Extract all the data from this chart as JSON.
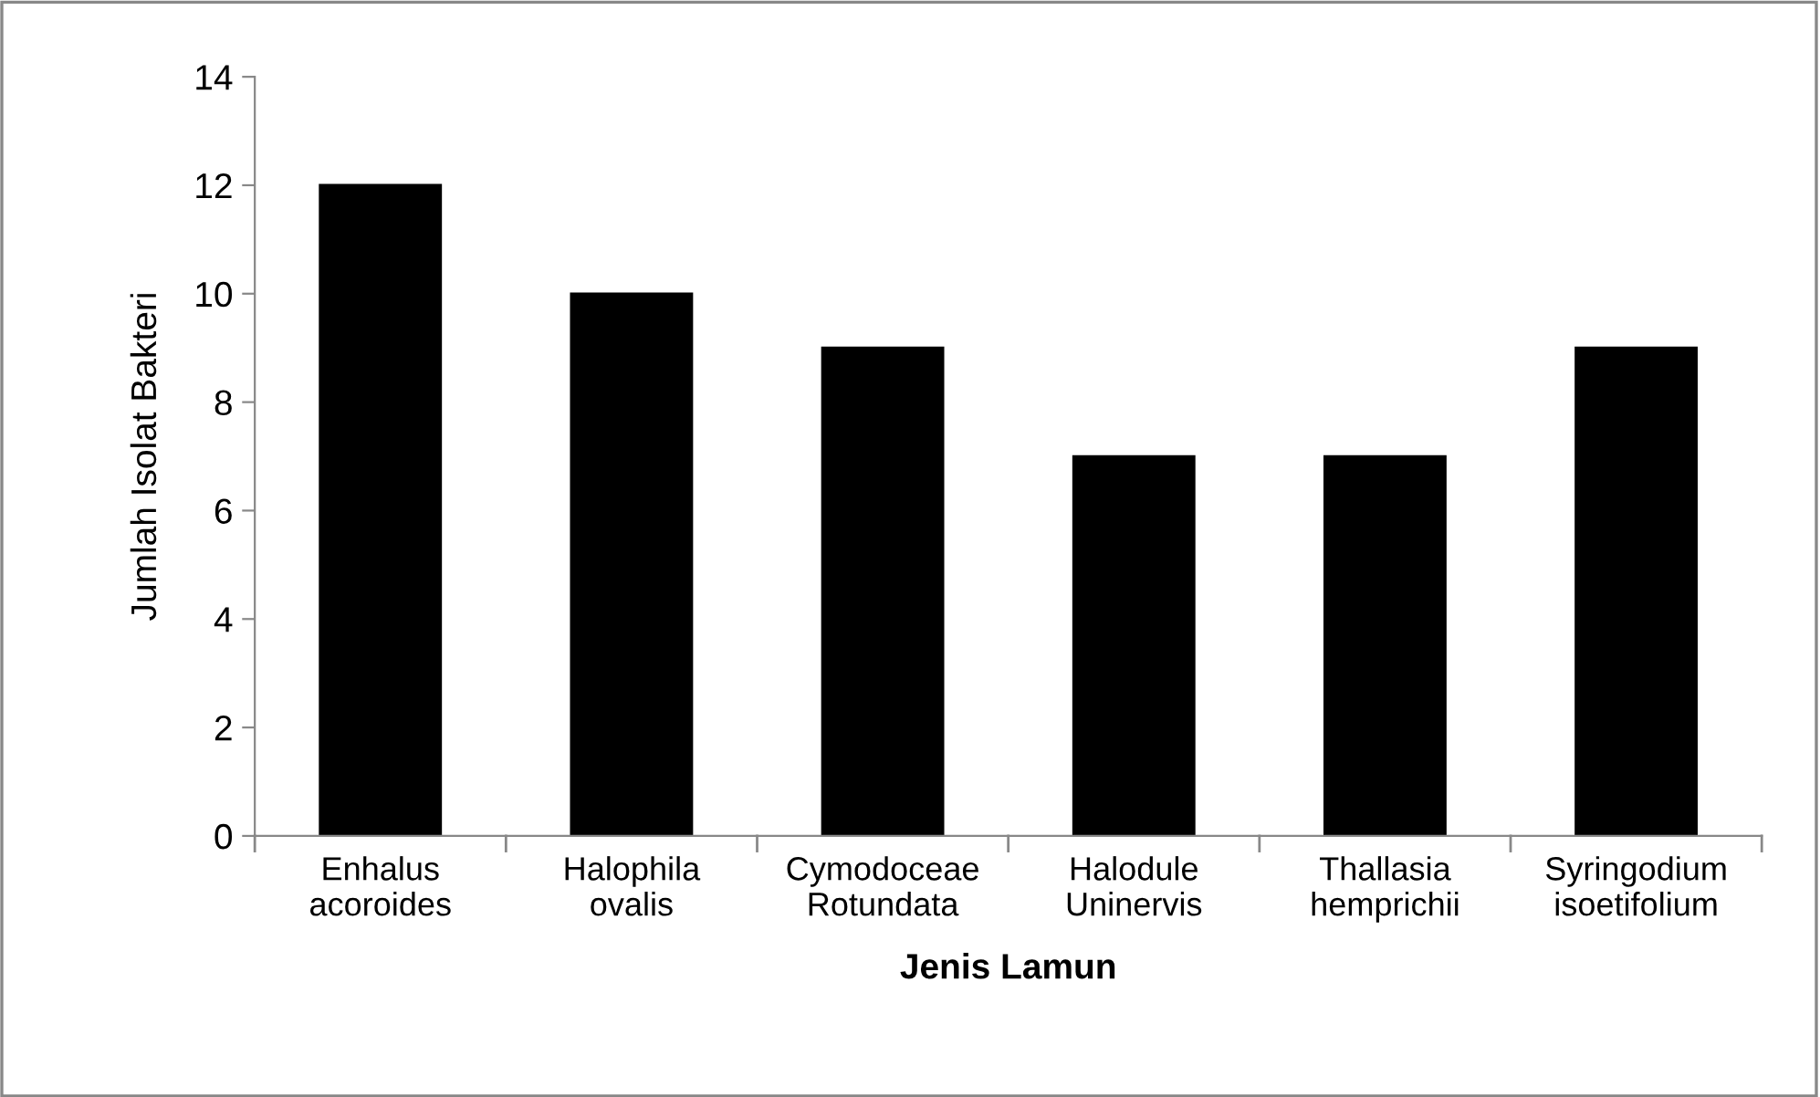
{
  "chart_data": {
    "type": "bar",
    "xlabel": "Jenis Lamun",
    "ylabel": "Jumlah Isolat Bakteri",
    "categories": [
      "Enhalus\nacoroides",
      "Halophila\novalis",
      "Cymodoceae\nRotundata",
      "Halodule\nUninervis",
      "Thallasia\nhemprichii",
      "Syringodium\nisoetifolium"
    ],
    "values": [
      12,
      10,
      9,
      7,
      7,
      9
    ],
    "color": "#000000",
    "ylim": [
      0,
      14
    ],
    "yticks": [
      0,
      2,
      4,
      6,
      8,
      10,
      12,
      14
    ],
    "grid": false,
    "legend": false
  }
}
